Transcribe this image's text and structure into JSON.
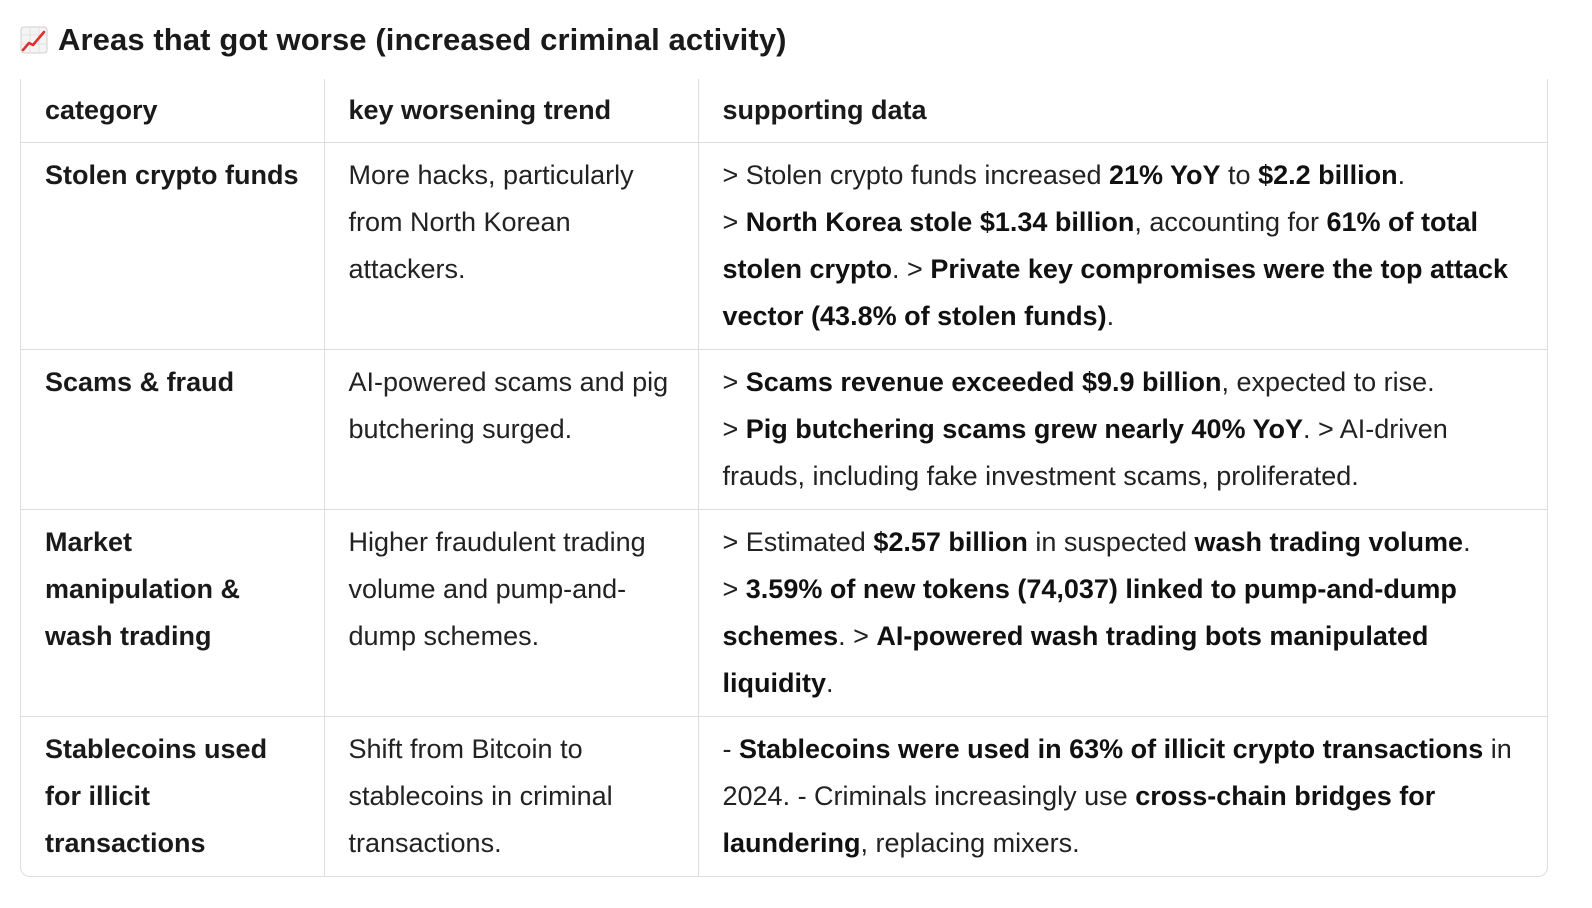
{
  "heading": {
    "icon": "chart-increasing-icon",
    "title": "Areas that got worse (increased criminal activity)"
  },
  "table": {
    "columns": [
      "category",
      "key worsening trend",
      "supporting data"
    ],
    "rows": [
      {
        "category": "Stolen crypto funds",
        "trend": "More hacks, particularly from North Korean attackers.",
        "data": [
          {
            "t": "> Stolen crypto funds increased ",
            "b": false
          },
          {
            "t": "21% YoY",
            "b": true
          },
          {
            "t": " to ",
            "b": false
          },
          {
            "t": "$2.2 billion",
            "b": true
          },
          {
            "t": ".",
            "b": false
          },
          {
            "br": true
          },
          {
            "t": "> ",
            "b": false
          },
          {
            "t": "North Korea stole $1.34 billion",
            "b": true
          },
          {
            "t": ", accounting for ",
            "b": false
          },
          {
            "t": "61% of total stolen crypto",
            "b": true
          },
          {
            "t": ". > ",
            "b": false
          },
          {
            "t": "Private key compromises were the top attack vector (43.8% of stolen funds)",
            "b": true
          },
          {
            "t": ".",
            "b": false
          }
        ]
      },
      {
        "category": "Scams & fraud",
        "trend": "AI-powered scams and pig butchering surged.",
        "data": [
          {
            "t": "> ",
            "b": false
          },
          {
            "t": "Scams revenue exceeded $9.9 billion",
            "b": true
          },
          {
            "t": ", expected to rise.",
            "b": false
          },
          {
            "br": true
          },
          {
            "t": "> ",
            "b": false
          },
          {
            "t": "Pig butchering scams grew nearly 40% YoY",
            "b": true
          },
          {
            "t": ". > AI-driven frauds, including fake investment scams, proliferated.",
            "b": false
          }
        ]
      },
      {
        "category": "Market manipulation & wash trading",
        "trend": "Higher fraudulent trading volume and pump-and-dump schemes.",
        "data": [
          {
            "t": "> Estimated ",
            "b": false
          },
          {
            "t": "$2.57 billion",
            "b": true
          },
          {
            "t": " in suspected ",
            "b": false
          },
          {
            "t": "wash trading volume",
            "b": true
          },
          {
            "t": ".",
            "b": false
          },
          {
            "br": true
          },
          {
            "t": "> ",
            "b": false
          },
          {
            "t": "3.59% of new tokens (74,037) linked to pump-and-dump schemes",
            "b": true
          },
          {
            "t": ". > ",
            "b": false
          },
          {
            "t": "AI-powered wash trading bots manipulated liquidity",
            "b": true
          },
          {
            "t": ".",
            "b": false
          }
        ]
      },
      {
        "category": "Stablecoins used for illicit transactions",
        "trend": "Shift from Bitcoin to stablecoins in criminal transactions.",
        "data": [
          {
            "t": "- ",
            "b": false
          },
          {
            "t": "Stablecoins were used in 63% of illicit crypto transactions",
            "b": true
          },
          {
            "t": " in 2024. - Criminals increasingly use ",
            "b": false
          },
          {
            "t": "cross-chain bridges for laundering",
            "b": true
          },
          {
            "t": ", replacing mixers.",
            "b": false
          }
        ]
      }
    ]
  }
}
